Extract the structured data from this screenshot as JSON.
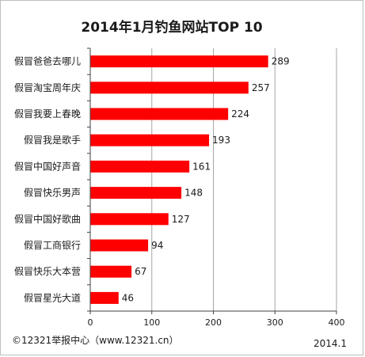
{
  "chart_data": {
    "type": "bar",
    "orientation": "horizontal",
    "title": "2014年1月钓鱼网站TOP 10",
    "categories": [
      "假冒爸爸去哪儿",
      "假冒淘宝周年庆",
      "假冒我要上春晚",
      "假冒我是歌手",
      "假冒中国好声音",
      "假冒快乐男声",
      "假冒中国好歌曲",
      "假冒工商银行",
      "假冒快乐大本营",
      "假冒星光大道"
    ],
    "values": [
      289,
      257,
      224,
      193,
      161,
      148,
      127,
      94,
      67,
      46
    ],
    "xlim": [
      0,
      400
    ],
    "xticks": [
      0,
      100,
      200,
      300,
      400
    ],
    "grid": true,
    "legend": "none",
    "bar_color": "#ff0000",
    "grid_color": "#a6a6a6"
  },
  "footer": {
    "source": "©12321举报中心（www.12321.cn）",
    "date": "2014.1"
  }
}
